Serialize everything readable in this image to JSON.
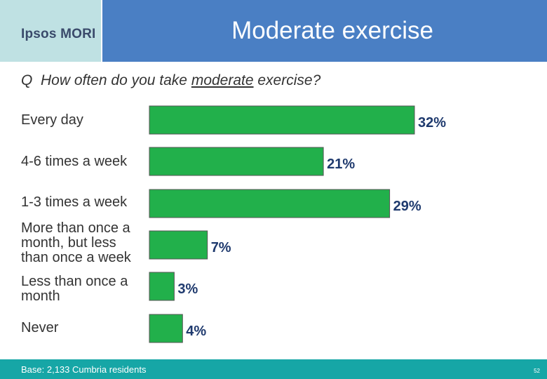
{
  "header": {
    "logo": "Ipsos MORI",
    "title": "Moderate exercise"
  },
  "question": {
    "prefix": "Q",
    "before": "How often do you take ",
    "emphasis": "moderate",
    "after": " exercise?"
  },
  "chart_data": {
    "type": "bar",
    "orientation": "horizontal",
    "categories": [
      "Every day",
      "4-6 times a week",
      "1-3 times a week",
      "More than once a month, but less than once a week",
      "Less than once a month",
      "Never"
    ],
    "values": [
      32,
      21,
      29,
      7,
      3,
      4
    ],
    "value_labels": [
      "32%",
      "21%",
      "29%",
      "7%",
      "3%",
      "4%"
    ],
    "bar_color": "#22b04b",
    "label_color": "#1f3a6e",
    "xlim": [
      0,
      32
    ]
  },
  "footer": {
    "base": "Base: 2,133 Cumbria residents",
    "page": "52"
  }
}
